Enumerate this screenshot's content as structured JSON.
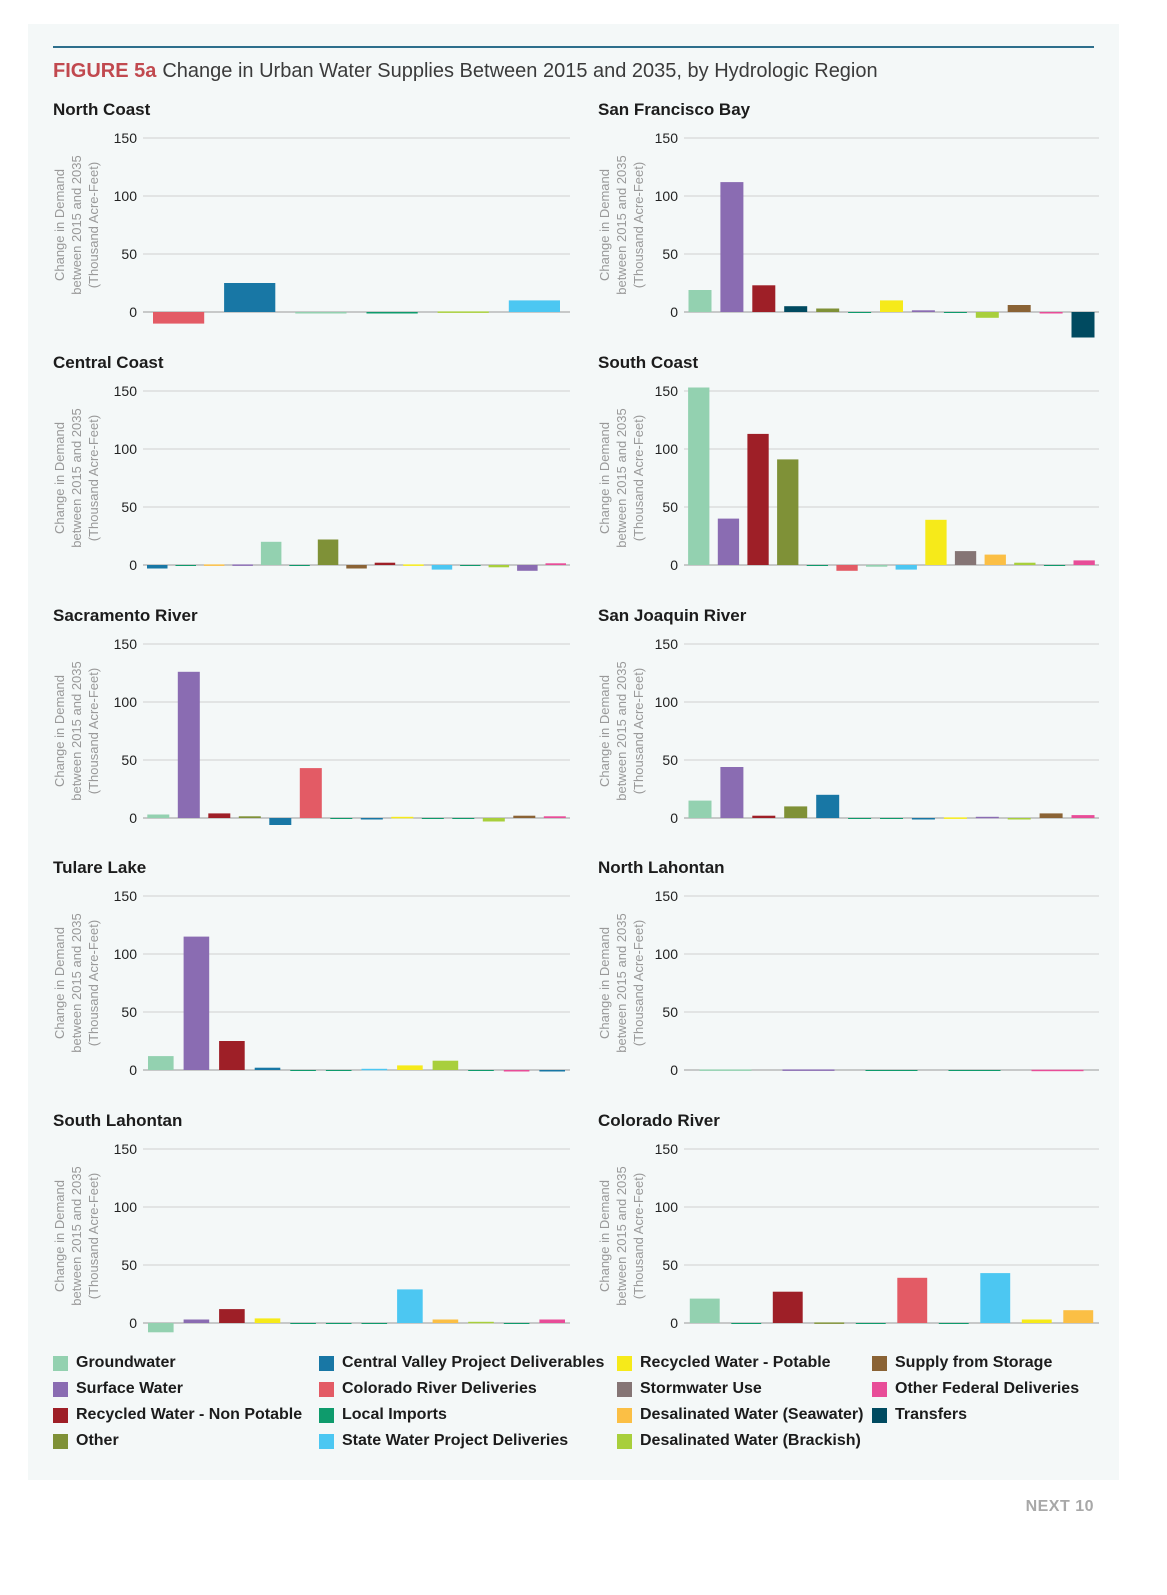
{
  "figure": {
    "number": "FIGURE 5a",
    "title": "Change in Urban Water Supplies Between 2015 and 2035, by Hydrologic Region"
  },
  "footer": "NEXT 10",
  "colors": {
    "number": "#c1494f",
    "rule": "#2e6f8c"
  },
  "legend": [
    {
      "label": "Groundwater",
      "color": "#93d1b0"
    },
    {
      "label": "Surface Water",
      "color": "#8a6cb2"
    },
    {
      "label": "Recycled Water - Non Potable",
      "color": "#9e1f27"
    },
    {
      "label": "Other",
      "color": "#7f9137"
    },
    {
      "label": "Central Valley Project Deliverables",
      "color": "#1877a5"
    },
    {
      "label": "Colorado River Deliveries",
      "color": "#e35b65"
    },
    {
      "label": "Local Imports",
      "color": "#0e9b6c"
    },
    {
      "label": "State Water Project Deliveries",
      "color": "#4cc7f2"
    },
    {
      "label": "Recycled Water - Potable",
      "color": "#f6ea1a"
    },
    {
      "label": "Stormwater Use",
      "color": "#857575"
    },
    {
      "label": "Desalinated Water (Seawater)",
      "color": "#fbbf45"
    },
    {
      "label": "Desalinated Water (Brackish)",
      "color": "#a8cf3c"
    },
    {
      "label": "Supply from Storage",
      "color": "#8a6335"
    },
    {
      "label": "Other Federal Deliveries",
      "color": "#e84d98"
    },
    {
      "label": "Transfers",
      "color": "#004a60"
    }
  ],
  "chart_data": [
    {
      "type": "bar",
      "title": "North Coast",
      "ylabel": "Change in Demand between 2015 and 2035 (Thousand Acre-Feet)",
      "yticks": [
        0,
        50,
        100,
        150
      ],
      "ylim": [
        -25,
        150
      ],
      "grid": true,
      "bars": [
        {
          "series": "Colorado River Deliveries",
          "value": -10
        },
        {
          "series": "Central Valley Project Deliverables",
          "value": 25
        },
        {
          "series": "Groundwater",
          "value": -1
        },
        {
          "series": "Local Imports",
          "value": -0.5
        },
        {
          "series": "Desalinated Water (Brackish)",
          "value": 0.5
        },
        {
          "series": "State Water Project Deliveries",
          "value": 10
        }
      ]
    },
    {
      "type": "bar",
      "title": "San Francisco Bay",
      "ylabel": "Change in Demand between 2015 and 2035 (Thousand Acre-Feet)",
      "yticks": [
        0,
        50,
        100,
        150
      ],
      "ylim": [
        -25,
        150
      ],
      "grid": true,
      "bars": [
        {
          "series": "Groundwater",
          "value": 19
        },
        {
          "series": "Surface Water",
          "value": 112
        },
        {
          "series": "Recycled Water - Non Potable",
          "value": 23
        },
        {
          "series": "Transfers",
          "value": 5
        },
        {
          "series": "Other",
          "value": 3
        },
        {
          "series": "Local Imports",
          "value": 0
        },
        {
          "series": "Recycled Water - Potable",
          "value": 10
        },
        {
          "series": "Surface Water",
          "value": 1.5
        },
        {
          "series": "Local Imports",
          "value": 0
        },
        {
          "series": "Desalinated Water (Brackish)",
          "value": -5
        },
        {
          "series": "Supply from Storage",
          "value": 6
        },
        {
          "series": "Other Federal Deliveries",
          "value": -0.5
        },
        {
          "series": "Transfers",
          "value": -22
        }
      ]
    },
    {
      "type": "bar",
      "title": "Central Coast",
      "ylabel": "Change in Demand between 2015 and 2035 (Thousand Acre-Feet)",
      "yticks": [
        0,
        50,
        100,
        150
      ],
      "ylim": [
        -25,
        150
      ],
      "grid": true,
      "bars": [
        {
          "series": "Central Valley Project Deliverables",
          "value": -3
        },
        {
          "series": "Local Imports",
          "value": 0
        },
        {
          "series": "Desalinated Water (Seawater)",
          "value": 0.5
        },
        {
          "series": "Surface Water",
          "value": 0.5
        },
        {
          "series": "Groundwater",
          "value": 20
        },
        {
          "series": "Local Imports",
          "value": 0
        },
        {
          "series": "Other",
          "value": 22
        },
        {
          "series": "Supply from Storage",
          "value": -3
        },
        {
          "series": "Recycled Water - Non Potable",
          "value": 2
        },
        {
          "series": "Recycled Water - Potable",
          "value": 0.5
        },
        {
          "series": "State Water Project Deliveries",
          "value": -4
        },
        {
          "series": "Local Imports",
          "value": 0
        },
        {
          "series": "Desalinated Water (Brackish)",
          "value": -2
        },
        {
          "series": "Surface Water",
          "value": -5
        },
        {
          "series": "Other Federal Deliveries",
          "value": 1.5
        }
      ]
    },
    {
      "type": "bar",
      "title": "South Coast",
      "ylabel": "Change in Demand between 2015 and 2035 (Thousand Acre-Feet)",
      "yticks": [
        0,
        50,
        100,
        150
      ],
      "ylim": [
        -25,
        150
      ],
      "grid": true,
      "bars": [
        {
          "series": "Groundwater",
          "value": 153
        },
        {
          "series": "Surface Water",
          "value": 40
        },
        {
          "series": "Recycled Water - Non Potable",
          "value": 113
        },
        {
          "series": "Other",
          "value": 91
        },
        {
          "series": "Local Imports",
          "value": 0
        },
        {
          "series": "Colorado River Deliveries",
          "value": -5
        },
        {
          "series": "Groundwater",
          "value": -1.5
        },
        {
          "series": "State Water Project Deliveries",
          "value": -4
        },
        {
          "series": "Recycled Water - Potable",
          "value": 39
        },
        {
          "series": "Stormwater Use",
          "value": 12
        },
        {
          "series": "Desalinated Water (Seawater)",
          "value": 9
        },
        {
          "series": "Desalinated Water (Brackish)",
          "value": 2
        },
        {
          "series": "Local Imports",
          "value": 0
        },
        {
          "series": "Other Federal Deliveries",
          "value": 4
        }
      ]
    },
    {
      "type": "bar",
      "title": "Sacramento River",
      "ylabel": "Change in Demand between 2015 and 2035 (Thousand Acre-Feet)",
      "yticks": [
        0,
        50,
        100,
        150
      ],
      "ylim": [
        -25,
        150
      ],
      "grid": true,
      "bars": [
        {
          "series": "Groundwater",
          "value": 3
        },
        {
          "series": "Surface Water",
          "value": 126
        },
        {
          "series": "Recycled Water - Non Potable",
          "value": 4
        },
        {
          "series": "Other",
          "value": 1.5
        },
        {
          "series": "Central Valley Project Deliverables",
          "value": -6
        },
        {
          "series": "Colorado River Deliveries",
          "value": 43
        },
        {
          "series": "Local Imports",
          "value": 0
        },
        {
          "series": "Central Valley Project Deliverables",
          "value": -0.5
        },
        {
          "series": "Recycled Water - Potable",
          "value": 1
        },
        {
          "series": "Local Imports",
          "value": 0
        },
        {
          "series": "Local Imports",
          "value": 0
        },
        {
          "series": "Desalinated Water (Brackish)",
          "value": -3
        },
        {
          "series": "Supply from Storage",
          "value": 2
        },
        {
          "series": "Other Federal Deliveries",
          "value": 1.5
        }
      ]
    },
    {
      "type": "bar",
      "title": "San Joaquin River",
      "ylabel": "Change in Demand between 2015 and 2035 (Thousand Acre-Feet)",
      "yticks": [
        0,
        50,
        100,
        150
      ],
      "ylim": [
        -25,
        150
      ],
      "grid": true,
      "bars": [
        {
          "series": "Groundwater",
          "value": 15
        },
        {
          "series": "Surface Water",
          "value": 44
        },
        {
          "series": "Recycled Water - Non Potable",
          "value": 2
        },
        {
          "series": "Other",
          "value": 10
        },
        {
          "series": "Central Valley Project Deliverables",
          "value": 20
        },
        {
          "series": "Local Imports",
          "value": 0
        },
        {
          "series": "Local Imports",
          "value": 0
        },
        {
          "series": "Central Valley Project Deliverables",
          "value": -0.5
        },
        {
          "series": "Recycled Water - Potable",
          "value": 0.5
        },
        {
          "series": "Surface Water",
          "value": 1
        },
        {
          "series": "Desalinated Water (Brackish)",
          "value": -1
        },
        {
          "series": "Supply from Storage",
          "value": 4
        },
        {
          "series": "Other Federal Deliveries",
          "value": 2.5
        }
      ]
    },
    {
      "type": "bar",
      "title": "Tulare Lake",
      "ylabel": "Change in Demand between 2015 and 2035 (Thousand Acre-Feet)",
      "yticks": [
        0,
        50,
        100,
        150
      ],
      "ylim": [
        -25,
        150
      ],
      "grid": true,
      "bars": [
        {
          "series": "Groundwater",
          "value": 12
        },
        {
          "series": "Surface Water",
          "value": 115
        },
        {
          "series": "Recycled Water - Non Potable",
          "value": 25
        },
        {
          "series": "Central Valley Project Deliverables",
          "value": 2
        },
        {
          "series": "Local Imports",
          "value": 0
        },
        {
          "series": "Local Imports",
          "value": 0
        },
        {
          "series": "State Water Project Deliveries",
          "value": 1
        },
        {
          "series": "Recycled Water - Potable",
          "value": 4
        },
        {
          "series": "Desalinated Water (Brackish)",
          "value": 8
        },
        {
          "series": "Local Imports",
          "value": 0
        },
        {
          "series": "Other Federal Deliveries",
          "value": -1
        },
        {
          "series": "Central Valley Project Deliverables",
          "value": -1
        }
      ]
    },
    {
      "type": "bar",
      "title": "North Lahontan",
      "ylabel": "Change in Demand between 2015 and 2035 (Thousand Acre-Feet)",
      "yticks": [
        0,
        50,
        100,
        150
      ],
      "ylim": [
        -25,
        150
      ],
      "grid": true,
      "bars": [
        {
          "series": "Groundwater",
          "value": 0.5
        },
        {
          "series": "Surface Water",
          "value": 0.5
        },
        {
          "series": "Local Imports",
          "value": 0
        },
        {
          "series": "Local Imports",
          "value": 0
        },
        {
          "series": "Other Federal Deliveries",
          "value": 0.3
        }
      ]
    },
    {
      "type": "bar",
      "title": "South Lahontan",
      "ylabel": "Change in Demand between 2015 and 2035 (Thousand Acre-Feet)",
      "yticks": [
        0,
        50,
        100,
        150
      ],
      "ylim": [
        -25,
        150
      ],
      "grid": true,
      "bars": [
        {
          "series": "Groundwater",
          "value": -8
        },
        {
          "series": "Surface Water",
          "value": 3
        },
        {
          "series": "Recycled Water - Non Potable",
          "value": 12
        },
        {
          "series": "Recycled Water - Potable",
          "value": 4
        },
        {
          "series": "Local Imports",
          "value": 0
        },
        {
          "series": "Local Imports",
          "value": 0
        },
        {
          "series": "Local Imports",
          "value": 0
        },
        {
          "series": "State Water Project Deliveries",
          "value": 29
        },
        {
          "series": "Desalinated Water (Seawater)",
          "value": 3
        },
        {
          "series": "Desalinated Water (Brackish)",
          "value": 1
        },
        {
          "series": "Local Imports",
          "value": 0
        },
        {
          "series": "Other Federal Deliveries",
          "value": 3
        }
      ]
    },
    {
      "type": "bar",
      "title": "Colorado River",
      "ylabel": "Change in Demand between 2015 and 2035 (Thousand Acre-Feet)",
      "yticks": [
        0,
        50,
        100,
        150
      ],
      "ylim": [
        -25,
        150
      ],
      "grid": true,
      "bars": [
        {
          "series": "Groundwater",
          "value": 21
        },
        {
          "series": "Local Imports",
          "value": 0
        },
        {
          "series": "Recycled Water - Non Potable",
          "value": 27
        },
        {
          "series": "Other",
          "value": 0.5
        },
        {
          "series": "Local Imports",
          "value": 0
        },
        {
          "series": "Colorado River Deliveries",
          "value": 39
        },
        {
          "series": "Local Imports",
          "value": 0
        },
        {
          "series": "State Water Project Deliveries",
          "value": 43
        },
        {
          "series": "Recycled Water - Potable",
          "value": 3
        },
        {
          "series": "Desalinated Water (Seawater)",
          "value": 11
        }
      ]
    }
  ]
}
